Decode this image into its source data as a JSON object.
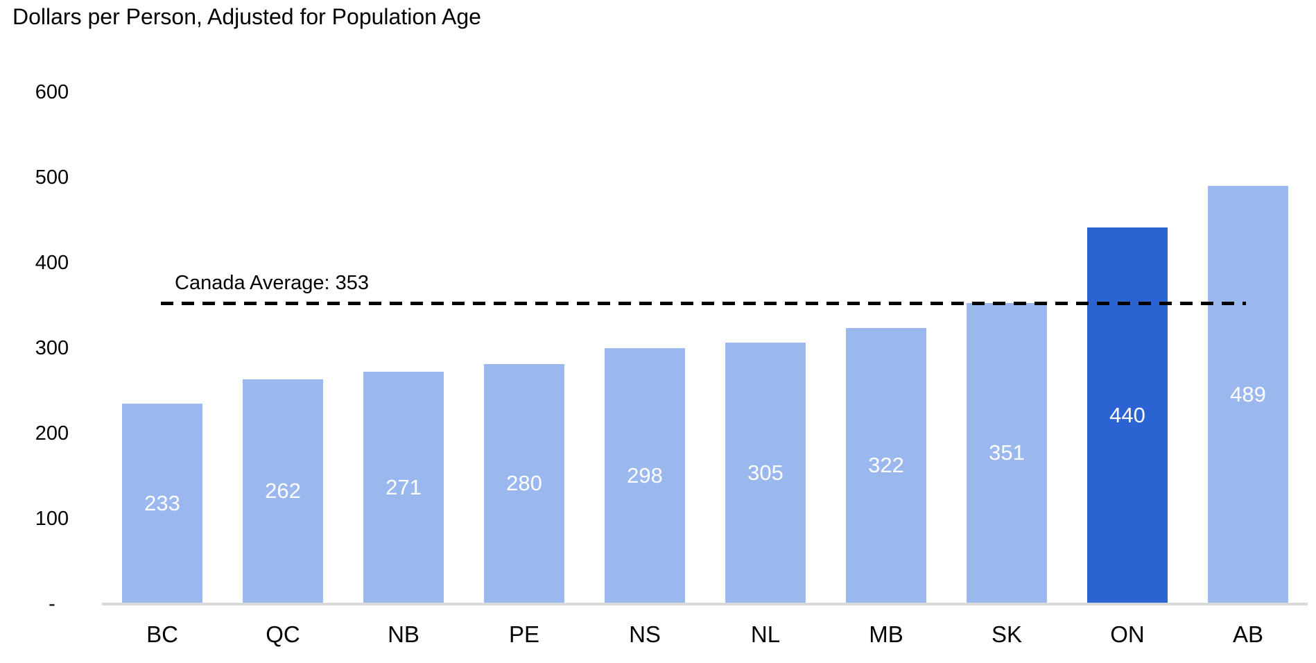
{
  "chart_data": {
    "type": "bar",
    "title": "Dollars per Person, Adjusted for Population Age",
    "categories": [
      "BC",
      "QC",
      "NB",
      "PE",
      "NS",
      "NL",
      "MB",
      "SK",
      "ON",
      "AB"
    ],
    "values": [
      233,
      262,
      271,
      280,
      298,
      305,
      322,
      351,
      440,
      489
    ],
    "value_labels": [
      "233",
      "262",
      "271",
      "280",
      "298",
      "305",
      "322",
      "351",
      "440",
      "489"
    ],
    "highlight_category": "ON",
    "highlight_index": 8,
    "average_line": {
      "label": "Canada Average: 353",
      "value": 353
    },
    "yticks": [
      600,
      500,
      400,
      300,
      200,
      100,
      0
    ],
    "ytick_labels": [
      "600",
      "500",
      "400",
      "300",
      "200",
      "100",
      "-"
    ],
    "ylim": [
      0,
      600
    ],
    "grid": false,
    "legend": "none",
    "xlabel": "",
    "ylabel": "",
    "colors": {
      "bar": "#9ab8ee",
      "highlight": "#2b63d3",
      "axis_line": "#d9d9d9",
      "average_dash": "#000000",
      "bar_value_text": "#ffffff",
      "text": "#000000",
      "background": "#ffffff"
    }
  }
}
